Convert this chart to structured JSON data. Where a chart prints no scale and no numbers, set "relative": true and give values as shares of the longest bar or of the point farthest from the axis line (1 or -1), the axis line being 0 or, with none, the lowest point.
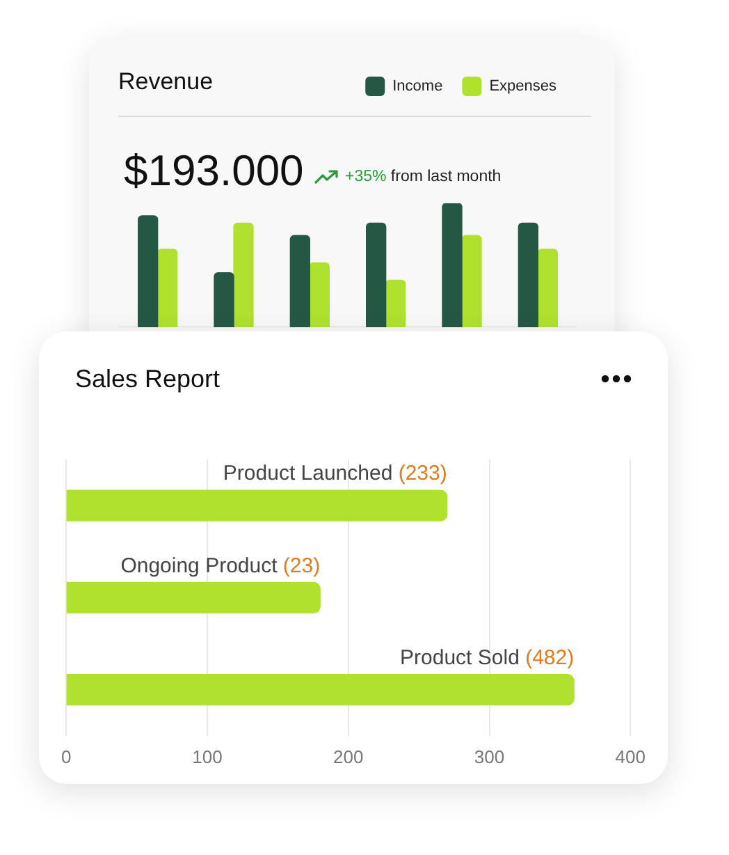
{
  "chart_data": [
    {
      "type": "bar",
      "title": "Revenue",
      "categories": [
        null,
        null,
        null,
        null,
        null,
        null
      ],
      "series": [
        {
          "name": "Income",
          "color": "#245845",
          "values": [
            0.9,
            0.44,
            0.74,
            0.84,
            1,
            0.84
          ]
        },
        {
          "name": "Expenses",
          "color": "#b0e12f",
          "values": [
            0.63,
            0.84,
            0.52,
            0.38,
            0.74,
            0.63
          ]
        }
      ],
      "relative": true,
      "legend": "top right",
      "tick_labels": false,
      "grid": false,
      "annotations": [
        "$193.000",
        "+35% from last month"
      ]
    },
    {
      "type": "bar",
      "title": "Sales Report",
      "orientation": "horizontal",
      "categories": [
        "Product Launched (233)",
        "Ongoing Product (23)",
        "Product Sold (482)"
      ],
      "values": [
        270,
        180,
        360
      ],
      "color": "#b0e12f",
      "xlim": [
        0,
        400
      ],
      "xticks": [
        0,
        100,
        200,
        300,
        400
      ],
      "grid": "x",
      "tick_labels": "x"
    }
  ]
}
